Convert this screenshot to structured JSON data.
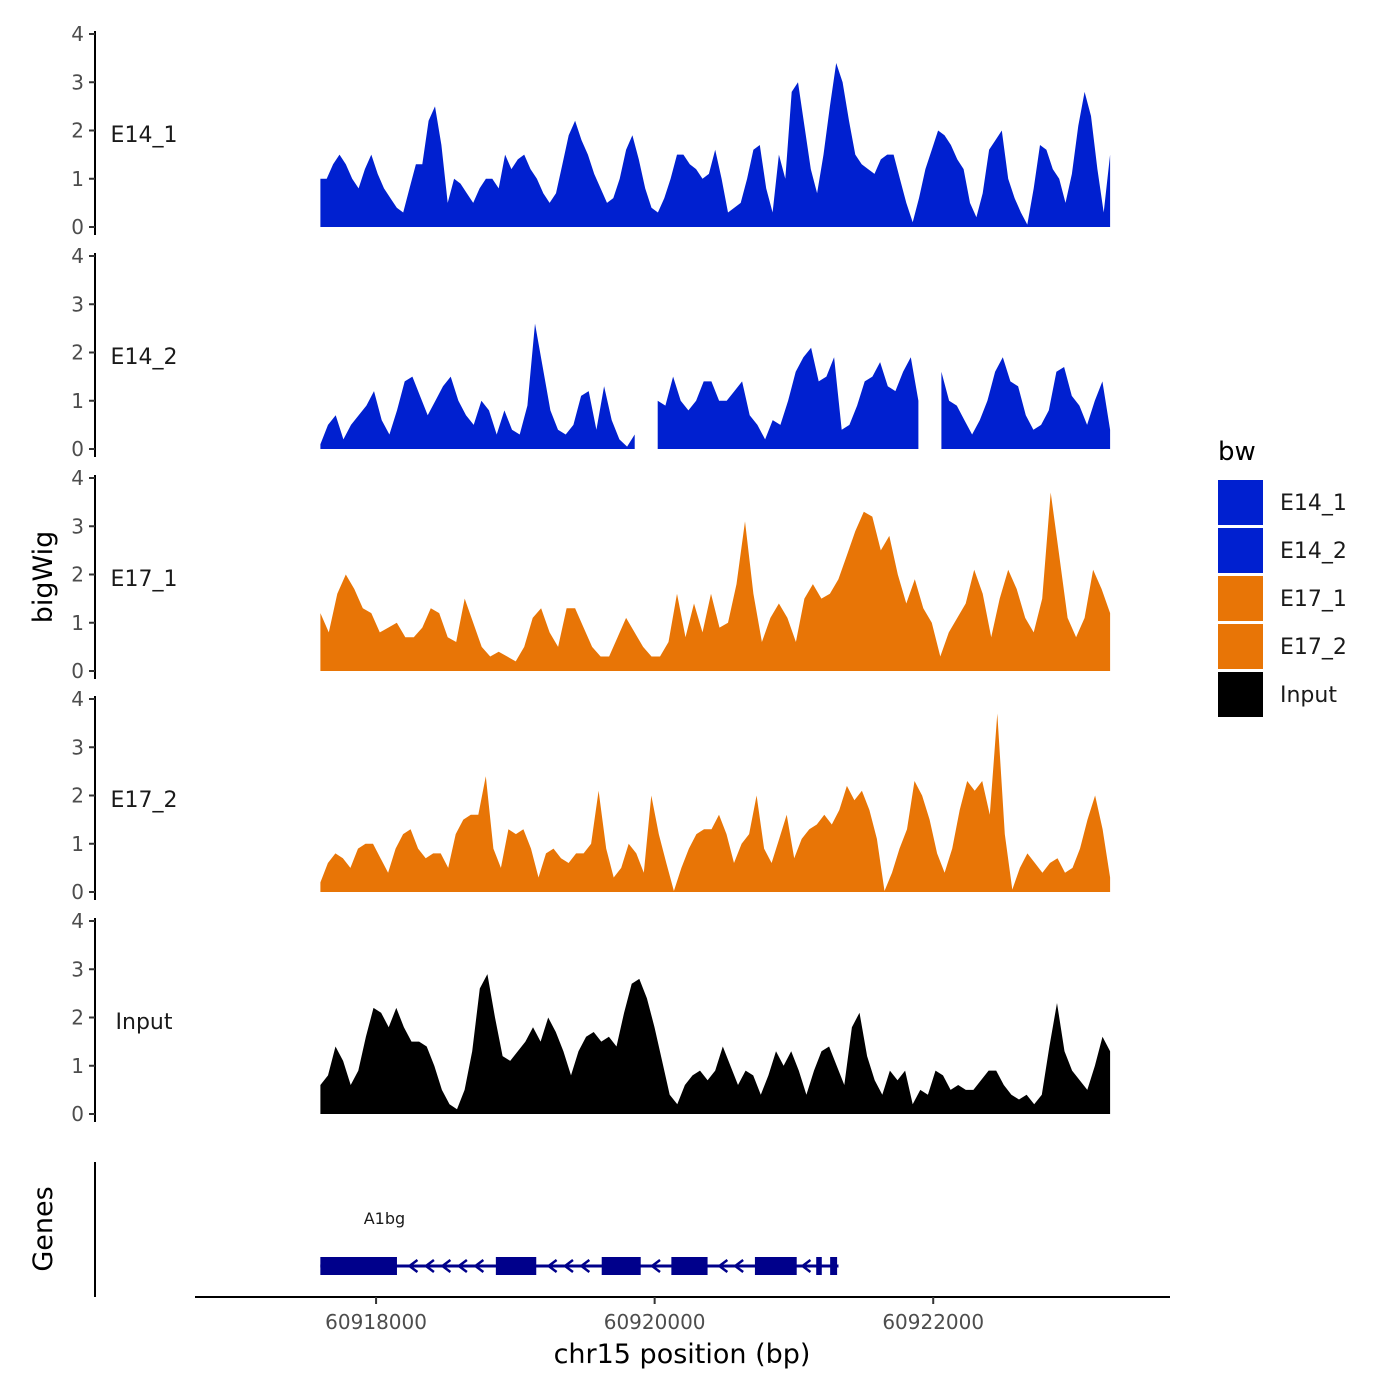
{
  "chart_data": {
    "type": "area",
    "chromosome": "chr15",
    "xlabel": "chr15 position (bp)",
    "ylabel": "bigWig",
    "xlim": [
      60916700,
      60923700
    ],
    "xticks": [
      60918000,
      60920000,
      60922000
    ],
    "xtick_labels": [
      "60918000",
      "60920000",
      "60922000"
    ],
    "ylim": [
      0,
      4
    ],
    "yticks": [
      0,
      1,
      2,
      3,
      4
    ],
    "ytick_labels": [
      "0",
      "1",
      "2",
      "3",
      "4"
    ],
    "x_start": 60917600,
    "x_end": 60923270,
    "legend": {
      "title": "bw",
      "position": "right",
      "items": [
        {
          "label": "E14_1",
          "color": "#0020D0"
        },
        {
          "label": "E14_2",
          "color": "#0020D0"
        },
        {
          "label": "E17_1",
          "color": "#E87506"
        },
        {
          "label": "E17_2",
          "color": "#E87506"
        },
        {
          "label": "Input",
          "color": "#000000"
        }
      ]
    },
    "series": [
      {
        "name": "E14_1",
        "color": "#0020D0",
        "values": [
          1,
          1,
          1.3,
          1.5,
          1.3,
          1,
          0.8,
          1.2,
          1.5,
          1.1,
          0.8,
          0.6,
          0.4,
          0.3,
          0.8,
          1.3,
          1.3,
          2.2,
          2.5,
          1.7,
          0.5,
          1,
          0.9,
          0.7,
          0.5,
          0.8,
          1,
          1,
          0.8,
          1.5,
          1.2,
          1.4,
          1.5,
          1.2,
          1,
          0.7,
          0.5,
          0.7,
          1.3,
          1.9,
          2.2,
          1.8,
          1.5,
          1.1,
          0.8,
          0.5,
          0.6,
          1,
          1.6,
          1.9,
          1.4,
          0.8,
          0.4,
          0.3,
          0.6,
          1,
          1.5,
          1.5,
          1.3,
          1.2,
          1,
          1.1,
          1.6,
          1,
          0.3,
          0.4,
          0.5,
          1,
          1.6,
          1.7,
          0.8,
          0.3,
          1.5,
          1,
          2.8,
          3,
          2.1,
          1.2,
          0.7,
          1.5,
          2.5,
          3.4,
          3,
          2.2,
          1.5,
          1.3,
          1.2,
          1.1,
          1.4,
          1.5,
          1.5,
          1,
          0.5,
          0.1,
          0.6,
          1.2,
          1.6,
          2,
          1.9,
          1.7,
          1.4,
          1.2,
          0.5,
          0.2,
          0.7,
          1.6,
          1.8,
          2,
          1,
          0.6,
          0.3,
          0.05,
          0.8,
          1.7,
          1.6,
          1.2,
          1,
          0.5,
          1.1,
          2.1,
          2.8,
          2.3,
          1.2,
          0.3,
          1.5
        ],
        "gaps": []
      },
      {
        "name": "E14_2",
        "color": "#0020D0",
        "values": [
          0.1,
          0.5,
          0.7,
          0.2,
          0.5,
          0.7,
          0.9,
          1.2,
          0.6,
          0.3,
          0.8,
          1.4,
          1.5,
          1.1,
          0.7,
          1,
          1.3,
          1.5,
          1,
          0.7,
          0.5,
          1,
          0.8,
          0.3,
          0.8,
          0.4,
          0.3,
          0.9,
          2.6,
          1.7,
          0.8,
          0.4,
          0.3,
          0.5,
          1.1,
          1.2,
          0.4,
          1.3,
          0.6,
          0.2,
          0.05,
          0.3,
          0.6,
          0.9,
          1,
          0.9,
          1.5,
          1,
          0.8,
          1,
          1.4,
          1.4,
          1,
          1,
          1.2,
          1.4,
          0.7,
          0.5,
          0.2,
          0.6,
          0.5,
          1,
          1.6,
          1.9,
          2.1,
          1.4,
          1.5,
          1.9,
          0.4,
          0.5,
          0.9,
          1.4,
          1.5,
          1.8,
          1.3,
          1.2,
          1.6,
          1.9,
          1,
          1.1,
          1.5,
          1.6,
          1,
          0.9,
          0.6,
          0.3,
          0.6,
          1,
          1.6,
          1.9,
          1.4,
          1.3,
          0.7,
          0.4,
          0.5,
          0.8,
          1.6,
          1.7,
          1.1,
          0.9,
          0.5,
          1,
          1.4,
          0.4
        ],
        "gaps": [
          [
            60919900,
            60920010
          ],
          [
            60921920,
            60922030
          ]
        ]
      },
      {
        "name": "E17_1",
        "color": "#E87506",
        "values": [
          1.2,
          0.8,
          1.6,
          2,
          1.7,
          1.3,
          1.2,
          0.8,
          0.9,
          1,
          0.7,
          0.7,
          0.9,
          1.3,
          1.2,
          0.7,
          0.6,
          1.5,
          1,
          0.5,
          0.3,
          0.4,
          0.3,
          0.2,
          0.5,
          1.1,
          1.3,
          0.8,
          0.5,
          1.3,
          1.3,
          0.9,
          0.5,
          0.3,
          0.3,
          0.7,
          1.1,
          0.8,
          0.5,
          0.3,
          0.3,
          0.6,
          1.6,
          0.7,
          1.4,
          0.8,
          1.6,
          0.9,
          1,
          1.8,
          3.1,
          1.6,
          0.6,
          1.1,
          1.4,
          1.1,
          0.6,
          1.5,
          1.8,
          1.5,
          1.6,
          1.9,
          2.4,
          2.9,
          3.3,
          3.2,
          2.5,
          2.8,
          2,
          1.4,
          1.9,
          1.3,
          1,
          0.3,
          0.8,
          1.1,
          1.4,
          2.1,
          1.6,
          0.7,
          1.5,
          2.1,
          1.7,
          1.1,
          0.8,
          1.5,
          3.7,
          2.4,
          1.1,
          0.7,
          1.1,
          2.1,
          1.7,
          1.2
        ],
        "gaps": []
      },
      {
        "name": "E17_2",
        "color": "#E87506",
        "values": [
          0.2,
          0.6,
          0.8,
          0.7,
          0.5,
          0.9,
          1,
          1,
          0.7,
          0.4,
          0.9,
          1.2,
          1.3,
          0.9,
          0.7,
          0.8,
          0.8,
          0.5,
          1.2,
          1.5,
          1.6,
          1.6,
          2.4,
          0.9,
          0.5,
          1.3,
          1.2,
          1.3,
          0.9,
          0.3,
          0.8,
          0.9,
          0.7,
          0.6,
          0.8,
          0.8,
          1,
          2.1,
          0.9,
          0.3,
          0.5,
          1,
          0.8,
          0.4,
          2,
          1.2,
          0.6,
          0.02,
          0.5,
          0.9,
          1.2,
          1.3,
          1.3,
          1.6,
          1.2,
          0.6,
          1,
          1.2,
          2,
          0.9,
          0.6,
          1.1,
          1.6,
          0.7,
          1.1,
          1.3,
          1.4,
          1.6,
          1.4,
          1.7,
          2.2,
          1.9,
          2.1,
          1.7,
          1.1,
          0.02,
          0.4,
          0.9,
          1.3,
          2.3,
          2,
          1.5,
          0.8,
          0.4,
          0.9,
          1.7,
          2.3,
          2.1,
          2.3,
          1.6,
          3.7,
          1.2,
          0.05,
          0.5,
          0.8,
          0.6,
          0.4,
          0.6,
          0.7,
          0.4,
          0.5,
          0.9,
          1.5,
          2,
          1.3,
          0.3
        ],
        "gaps": []
      },
      {
        "name": "Input",
        "color": "#000000",
        "values": [
          0.6,
          0.8,
          1.4,
          1.1,
          0.6,
          0.9,
          1.6,
          2.2,
          2.1,
          1.8,
          2.2,
          1.8,
          1.5,
          1.5,
          1.4,
          1,
          0.5,
          0.2,
          0.1,
          0.5,
          1.3,
          2.6,
          2.9,
          2,
          1.2,
          1.1,
          1.3,
          1.5,
          1.8,
          1.5,
          2,
          1.7,
          1.3,
          0.8,
          1.3,
          1.6,
          1.7,
          1.5,
          1.6,
          1.4,
          2.1,
          2.7,
          2.8,
          2.4,
          1.8,
          1.1,
          0.4,
          0.2,
          0.6,
          0.8,
          0.9,
          0.7,
          0.9,
          1.4,
          1,
          0.6,
          0.9,
          0.8,
          0.4,
          0.8,
          1.3,
          1,
          1.3,
          0.9,
          0.4,
          0.9,
          1.3,
          1.4,
          1,
          0.6,
          1.8,
          2.1,
          1.2,
          0.7,
          0.4,
          0.9,
          0.7,
          0.9,
          0.2,
          0.5,
          0.4,
          0.9,
          0.8,
          0.5,
          0.6,
          0.5,
          0.5,
          0.7,
          0.9,
          0.9,
          0.6,
          0.4,
          0.3,
          0.4,
          0.2,
          0.4,
          1.4,
          2.3,
          1.3,
          0.9,
          0.7,
          0.5,
          1,
          1.6,
          1.3
        ],
        "gaps": []
      }
    ],
    "genes": {
      "track_label": "Genes",
      "name": "A1bg",
      "strand": "-",
      "color": "#00008B",
      "start": 60917600,
      "end": 60921320,
      "exons": [
        [
          60917600,
          60918150
        ],
        [
          60918860,
          60919150
        ],
        [
          60919620,
          60919900
        ],
        [
          60920120,
          60920380
        ],
        [
          60920720,
          60921020
        ],
        [
          60921160,
          60921200
        ],
        [
          60921260,
          60921310
        ]
      ]
    }
  }
}
